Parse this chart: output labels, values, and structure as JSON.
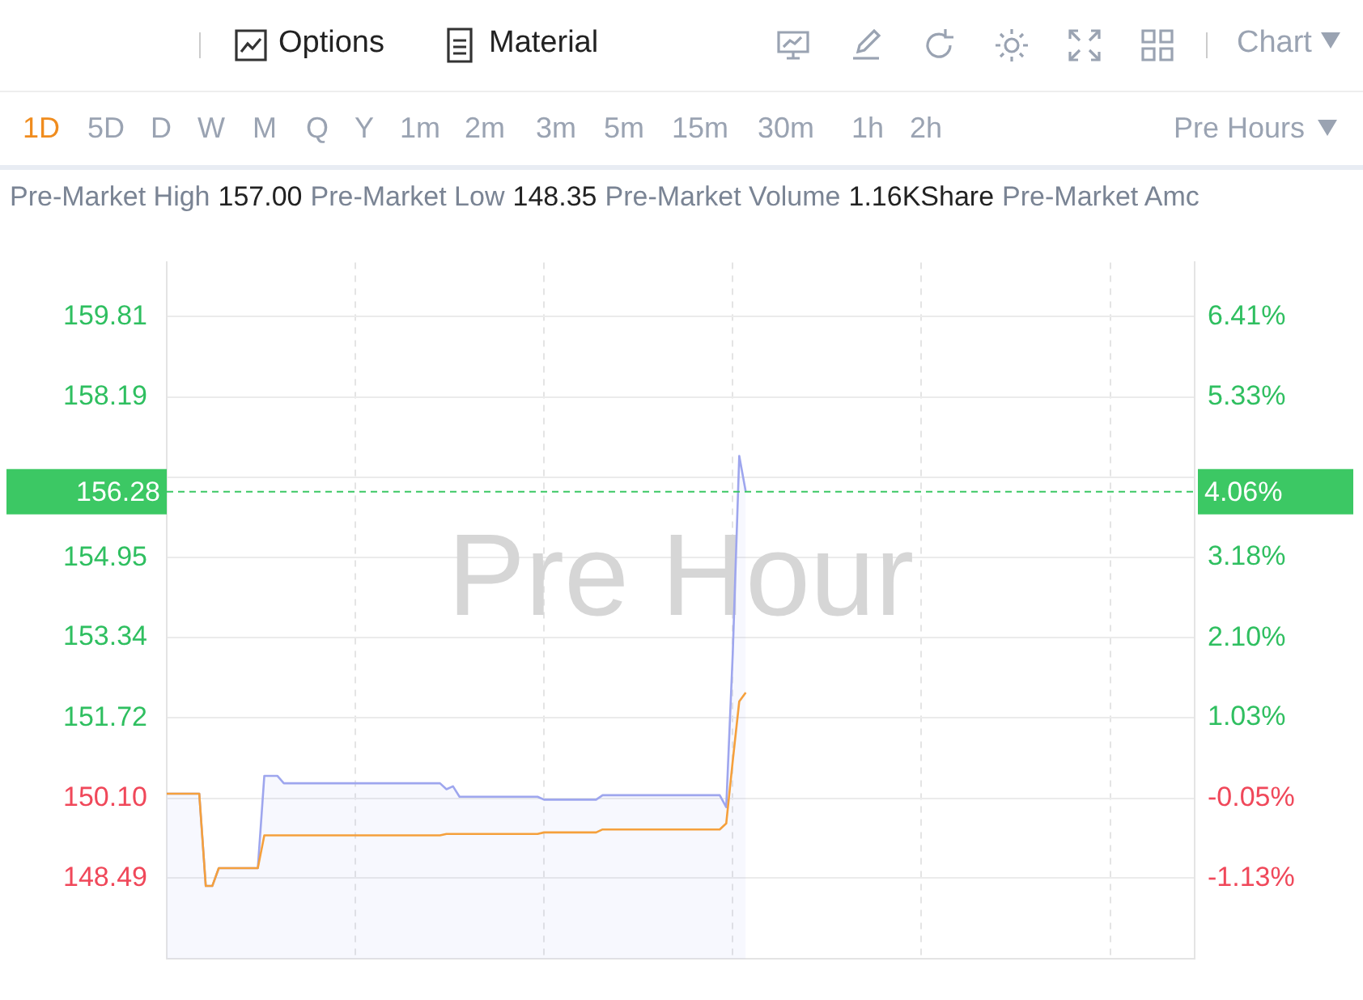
{
  "chart_data": {
    "type": "line",
    "categories": [
      null,
      null,
      null,
      null,
      null,
      null,
      null,
      null,
      null,
      null,
      null,
      null,
      null,
      null,
      null,
      null,
      null,
      null,
      null,
      null,
      null,
      null,
      null,
      null,
      null,
      null,
      null,
      null,
      null,
      null,
      null,
      null,
      null,
      null,
      null,
      null,
      null,
      null,
      null,
      null,
      null,
      null,
      null,
      null,
      null,
      null,
      null,
      null,
      null,
      null,
      null,
      null,
      null,
      null,
      null,
      null,
      null,
      null,
      null,
      null,
      null,
      null,
      null,
      null,
      null,
      null,
      null,
      null,
      null,
      null,
      null,
      null,
      null,
      null,
      null,
      null,
      null,
      null,
      null,
      null,
      null,
      null,
      null,
      null,
      null,
      null,
      null,
      null,
      null,
      null,
      null,
      null,
      null,
      null,
      null,
      null,
      null,
      null,
      null,
      null,
      null,
      null,
      null,
      null,
      null,
      null,
      null,
      null,
      null,
      null,
      null,
      null,
      null,
      null,
      null,
      null,
      null,
      null,
      null,
      null,
      null,
      null,
      null,
      null,
      null,
      null,
      null,
      null,
      null,
      null,
      null,
      null,
      null,
      null,
      null,
      null,
      null,
      null,
      null,
      null,
      null,
      null,
      null,
      null,
      null,
      null,
      null,
      null,
      null,
      null,
      null,
      null,
      null,
      null,
      null,
      null,
      null,
      null,
      null
    ],
    "series": [
      {
        "type": "area",
        "color": "#9ea6ee",
        "values": [
          150.19,
          150.19,
          150.19,
          150.19,
          150.19,
          150.19,
          148.33,
          148.33,
          148.69,
          148.69,
          148.69,
          148.69,
          148.69,
          148.69,
          148.69,
          150.55,
          150.55,
          150.55,
          150.4,
          150.4,
          150.4,
          150.4,
          150.4,
          150.4,
          150.4,
          150.4,
          150.4,
          150.4,
          150.4,
          150.4,
          150.4,
          150.4,
          150.4,
          150.4,
          150.4,
          150.4,
          150.4,
          150.4,
          150.4,
          150.4,
          150.4,
          150.4,
          150.4,
          150.28,
          150.34,
          150.13,
          150.13,
          150.13,
          150.13,
          150.13,
          150.13,
          150.13,
          150.13,
          150.13,
          150.13,
          150.13,
          150.13,
          150.13,
          150.07,
          150.07,
          150.07,
          150.07,
          150.07,
          150.07,
          150.07,
          150.07,
          150.07,
          150.16,
          150.16,
          150.16,
          150.16,
          150.16,
          150.16,
          150.16,
          150.16,
          150.16,
          150.16,
          150.16,
          150.16,
          150.16,
          150.16,
          150.16,
          150.16,
          150.16,
          150.16,
          150.16,
          149.92,
          153.01,
          157.0,
          156.28,
          null,
          null,
          null,
          null,
          null,
          null,
          null,
          null,
          null,
          null,
          null,
          null,
          null,
          null,
          null,
          null,
          null,
          null,
          null,
          null,
          null,
          null,
          null,
          null,
          null,
          null,
          null,
          null,
          null,
          null,
          null,
          null,
          null,
          null,
          null,
          null,
          null,
          null,
          null,
          null,
          null,
          null,
          null,
          null,
          null,
          null,
          null,
          null,
          null,
          null,
          null,
          null,
          null,
          null,
          null,
          null,
          null,
          null,
          null,
          null,
          null,
          null,
          null,
          null,
          null,
          null,
          null,
          null,
          null
        ]
      },
      {
        "type": "line",
        "color": "#f5a03c",
        "values": [
          150.19,
          150.19,
          150.19,
          150.19,
          150.19,
          150.19,
          148.33,
          148.33,
          148.69,
          148.69,
          148.69,
          148.69,
          148.69,
          148.69,
          148.69,
          149.35,
          149.35,
          149.35,
          149.35,
          149.35,
          149.35,
          149.35,
          149.35,
          149.35,
          149.35,
          149.35,
          149.35,
          149.35,
          149.35,
          149.35,
          149.35,
          149.35,
          149.35,
          149.35,
          149.35,
          149.35,
          149.35,
          149.35,
          149.35,
          149.35,
          149.35,
          149.35,
          149.35,
          149.38,
          149.38,
          149.38,
          149.38,
          149.38,
          149.38,
          149.38,
          149.38,
          149.38,
          149.38,
          149.38,
          149.38,
          149.38,
          149.38,
          149.38,
          149.41,
          149.41,
          149.41,
          149.41,
          149.41,
          149.41,
          149.41,
          149.41,
          149.41,
          149.47,
          149.47,
          149.47,
          149.47,
          149.47,
          149.47,
          149.47,
          149.47,
          149.47,
          149.47,
          149.47,
          149.47,
          149.47,
          149.47,
          149.47,
          149.47,
          149.47,
          149.47,
          149.47,
          149.59,
          150.85,
          152.05,
          152.23,
          null,
          null,
          null,
          null,
          null,
          null,
          null,
          null,
          null,
          null,
          null,
          null,
          null,
          null,
          null,
          null,
          null,
          null,
          null,
          null,
          null,
          null,
          null,
          null,
          null,
          null,
          null,
          null,
          null,
          null,
          null,
          null,
          null,
          null,
          null,
          null,
          null,
          null,
          null,
          null,
          null,
          null,
          null,
          null,
          null,
          null,
          null,
          null,
          null,
          null,
          null,
          null,
          null,
          null,
          null,
          null,
          null,
          null,
          null,
          null,
          null,
          null,
          null,
          null,
          null,
          null,
          null,
          null,
          null
        ]
      }
    ],
    "ylim": [
      146.86,
      160.9
    ],
    "yticks": [
      148.49,
      {
        "value": 150.1,
        "label": "150.10"
      },
      151.72,
      153.34,
      154.95,
      {
        "value": 156.57,
        "label": null
      },
      158.19,
      159.81
    ],
    "y2lim": [
      -2.21,
      7.14
    ],
    "y2ticks": [
      {
        "value": -1.13,
        "label": "-1.13%"
      },
      {
        "value": -0.05,
        "label": "-0.05%"
      },
      {
        "value": 1.03,
        "label": "1.03%"
      },
      {
        "value": 2.1,
        "label": "2.10%"
      },
      {
        "value": 3.18,
        "label": "3.18%"
      },
      {
        "value": 4.26,
        "label": null
      },
      {
        "value": 5.33,
        "label": "5.33%"
      },
      {
        "value": 6.41,
        "label": "6.41%"
      }
    ],
    "ref_lines": [
      {
        "axis": "y",
        "value": 156.28,
        "label": "156.28",
        "color": "#3cc864",
        "line_style": "dashed"
      }
    ],
    "grid": true,
    "legend": false,
    "marker": "none",
    "annotations": [
      "Pre Hour",
      "Options",
      "Material",
      "Chart",
      "Pre Hours",
      "1D",
      "5D",
      "D",
      "W",
      "M",
      "Q",
      "Y",
      "1m",
      "2m",
      "3m",
      "5m",
      "15m",
      "30m",
      "1h",
      "2h",
      "Pre-Market High",
      "157.00",
      "Pre-Market Low",
      "148.35",
      "Pre-Market Volume",
      "1.16KShare",
      "Pre-Market Amc",
      "4.06%"
    ]
  }
}
